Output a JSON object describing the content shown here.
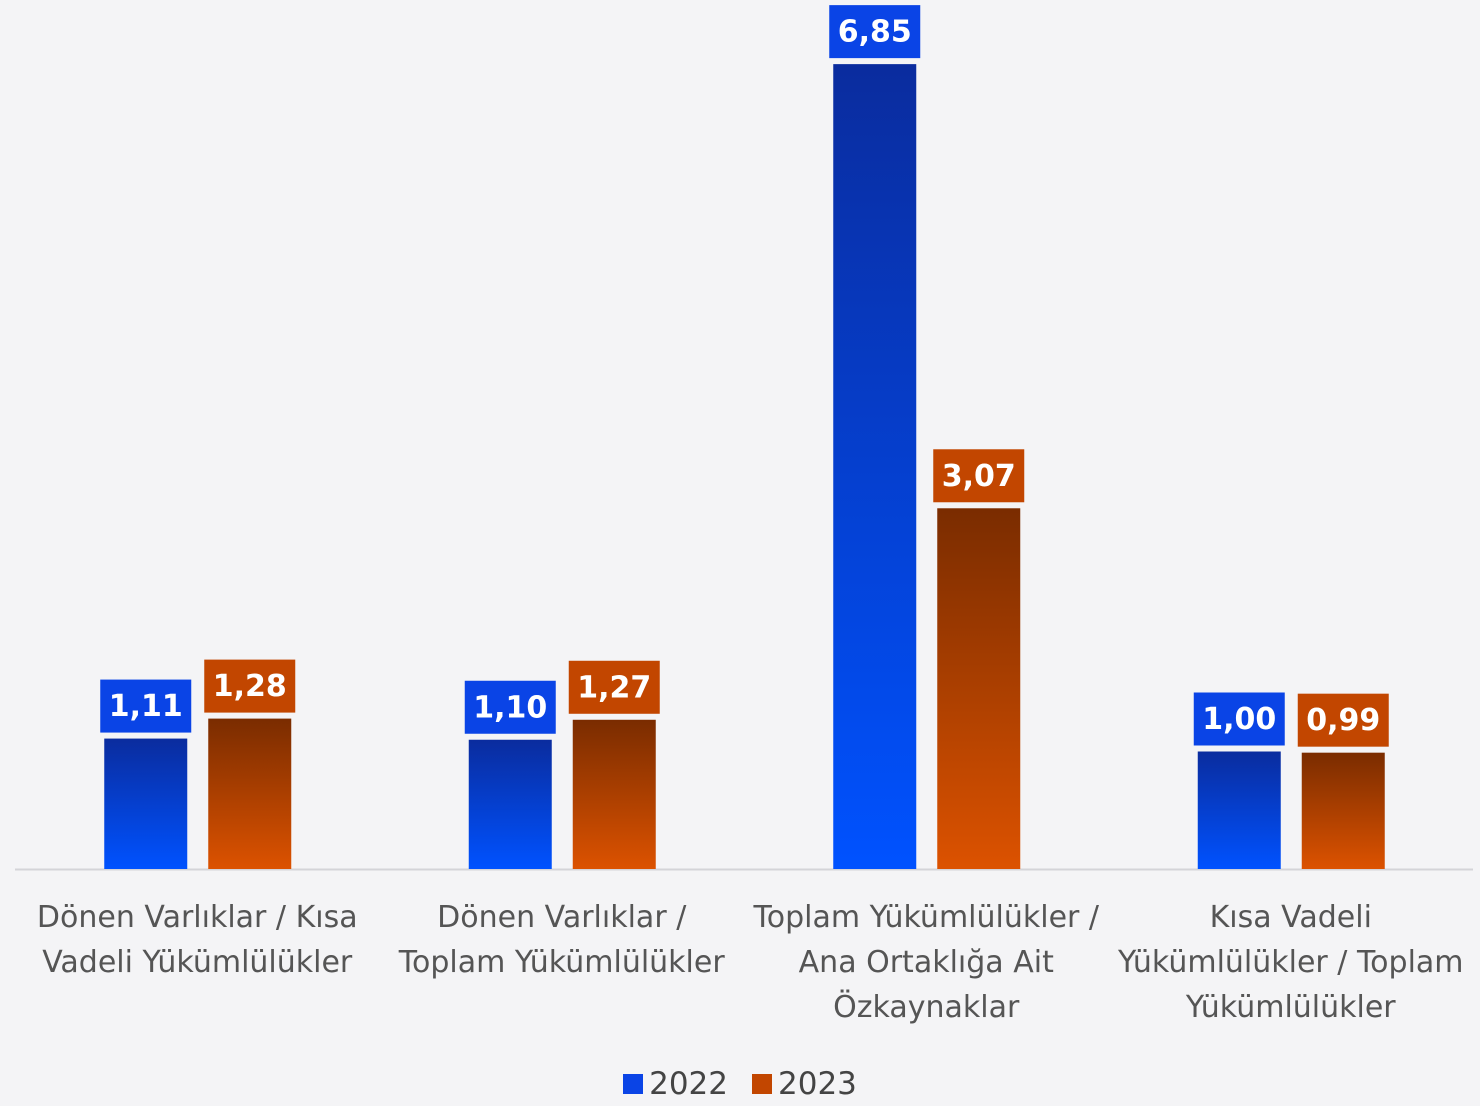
{
  "chart_data": {
    "type": "bar",
    "categories": [
      "Dönen Varlıklar / Kısa Vadeli Yükümlülükler",
      "Dönen Varlıklar / Toplam Yükümlülükler",
      "Toplam Yükümlülükler / Ana Ortaklığa Ait Özkaynaklar",
      "Kısa Vadeli Yükümlülükler / Toplam Yükümlülükler"
    ],
    "series": [
      {
        "name": "2022",
        "color": "#0a44e6",
        "values": [
          1.11,
          1.1,
          6.85,
          1.0
        ],
        "value_labels": [
          "1,11",
          "1,10",
          "6,85",
          "1,00"
        ]
      },
      {
        "name": "2023",
        "color": "#c24600",
        "values": [
          1.28,
          1.27,
          3.07,
          0.99
        ],
        "value_labels": [
          "1,28",
          "1,27",
          "3,07",
          "0,99"
        ]
      }
    ],
    "ylim": [
      0,
      7
    ],
    "legend": "bottom"
  }
}
